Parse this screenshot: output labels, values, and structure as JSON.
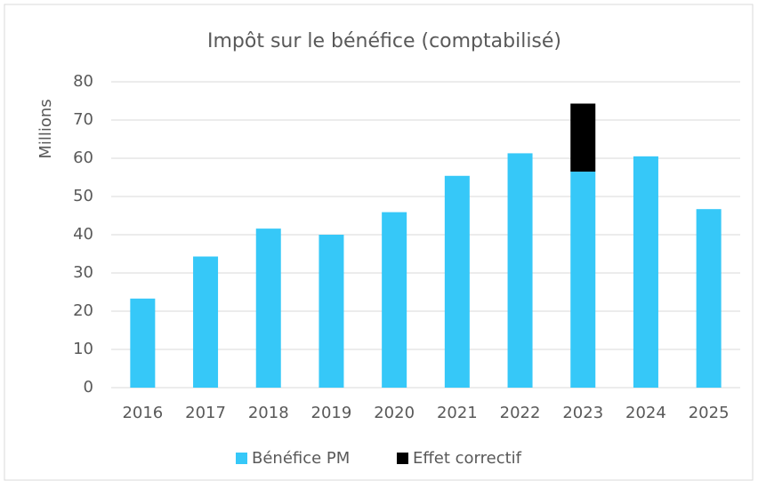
{
  "chart_data": {
    "type": "stacked_bar",
    "title": "Impôt sur le bénéfice (comptabilisé)",
    "y_label": "Millions",
    "categories": [
      "2016",
      "2017",
      "2018",
      "2019",
      "2020",
      "2021",
      "2022",
      "2023",
      "2024",
      "2025"
    ],
    "series": [
      {
        "name": "Bénéfice PM",
        "color": "#36c8f8",
        "values": [
          23.3,
          34.3,
          41.6,
          40.0,
          45.9,
          55.4,
          61.3,
          56.5,
          60.5,
          46.7
        ]
      },
      {
        "name": "Effet correctif",
        "color": "#000000",
        "values": [
          null,
          null,
          null,
          null,
          null,
          null,
          null,
          17.8,
          null,
          null
        ]
      }
    ],
    "ylim": [
      0,
      80
    ],
    "yticks": [
      0,
      10,
      20,
      30,
      40,
      50,
      60,
      70,
      80
    ],
    "grid": true,
    "legend": "bottom"
  }
}
